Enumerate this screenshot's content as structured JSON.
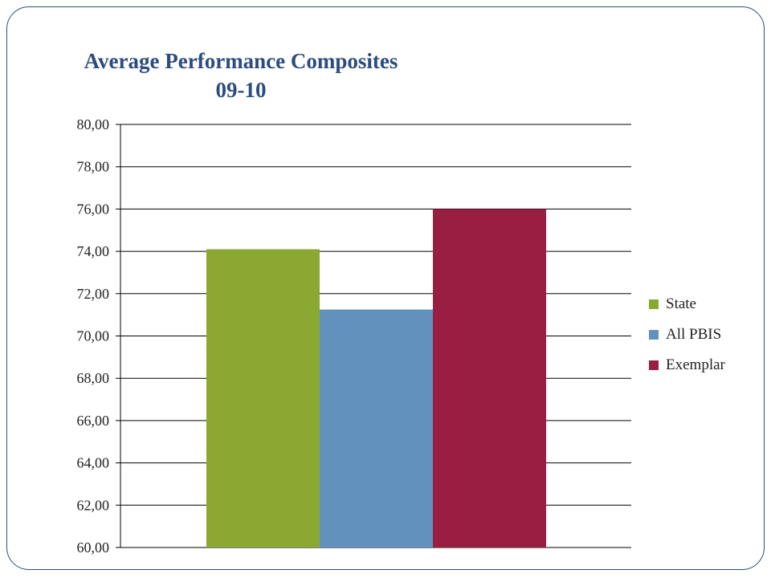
{
  "colors": {
    "frame": "#2b4c7e",
    "title": "#2b4c7e",
    "gridline": "#000000"
  },
  "chart_data": {
    "type": "bar",
    "title": "Average Performance Composites",
    "subtitle": "09-10",
    "xlabel": "",
    "ylabel": "",
    "ylim": [
      60,
      80
    ],
    "yticks": [
      "60,00",
      "62,00",
      "64,00",
      "66,00",
      "68,00",
      "70,00",
      "72,00",
      "74,00",
      "76,00",
      "78,00",
      "80,00"
    ],
    "grid": true,
    "legend_position": "right",
    "categories": [
      ""
    ],
    "series": [
      {
        "name": "State",
        "values": [
          74.1
        ],
        "color": "#8ba832"
      },
      {
        "name": "All PBIS",
        "values": [
          71.25
        ],
        "color": "#6391bd"
      },
      {
        "name": "Exemplar",
        "values": [
          76.0
        ],
        "color": "#991f42"
      }
    ]
  }
}
